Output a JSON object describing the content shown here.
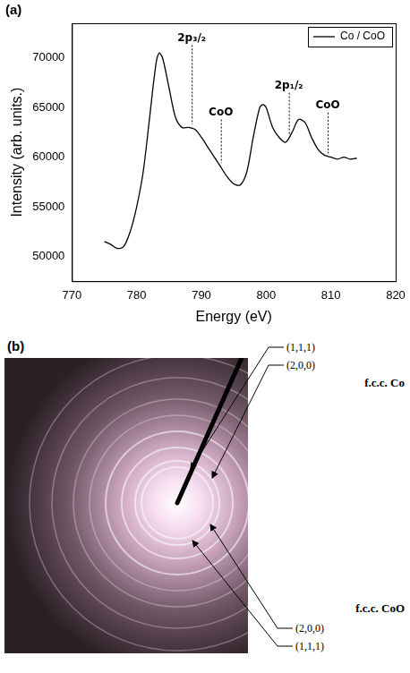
{
  "chart_data": {
    "type": "line",
    "panel_label": "(a)",
    "x_label": "Energy (eV)",
    "y_label": "Intensity (arb. units.)",
    "xlim": [
      770,
      820
    ],
    "xticks": [
      770,
      780,
      790,
      800,
      810,
      820
    ],
    "ylim": [
      47500,
      73500
    ],
    "yticks": [
      50000,
      55000,
      60000,
      65000,
      70000
    ],
    "grid": false,
    "legend": "upper right",
    "x": [
      775,
      776,
      777,
      778,
      779,
      780,
      781,
      782,
      783,
      783.5,
      784,
      785,
      786,
      787,
      788,
      789,
      790,
      791,
      792,
      793,
      794,
      795,
      796,
      797,
      798,
      799,
      799.5,
      800,
      801,
      802,
      803,
      804,
      805,
      806,
      807,
      808,
      809,
      810,
      811,
      812,
      813,
      814
    ],
    "series": [
      {
        "name": "Co / CoO",
        "color": "#000000",
        "values": [
          51500,
          51200,
          50800,
          51000,
          52500,
          55000,
          58500,
          64000,
          69500,
          70500,
          70000,
          67000,
          64000,
          63000,
          63000,
          62800,
          62000,
          61000,
          60000,
          59000,
          58000,
          57300,
          57200,
          58500,
          62000,
          65000,
          65300,
          65000,
          63000,
          62000,
          61500,
          62500,
          63800,
          63500,
          62000,
          60800,
          60200,
          60000,
          59800,
          60000,
          59800,
          59900
        ]
      }
    ],
    "annotations": [
      {
        "text": "2p₃/₂",
        "x": 788.5,
        "y": 71300,
        "y_end": 63300
      },
      {
        "text": "CoO",
        "x": 793,
        "y": 63800,
        "y_end": 59400
      },
      {
        "text": "2p₁/₂",
        "x": 803.5,
        "y": 66500,
        "y_end": 62200
      },
      {
        "text": "CoO",
        "x": 809.5,
        "y": 64500,
        "y_end": 60400
      }
    ]
  },
  "image_panel": {
    "panel_label": "(b)",
    "groups": [
      {
        "phase": "f.c.c. Co",
        "reflections": [
          "(1,1,1)",
          "(2,0,0)"
        ]
      },
      {
        "phase": "f.c.c. CoO",
        "reflections": [
          "(2,0,0)",
          "(1,1,1)"
        ]
      }
    ]
  }
}
